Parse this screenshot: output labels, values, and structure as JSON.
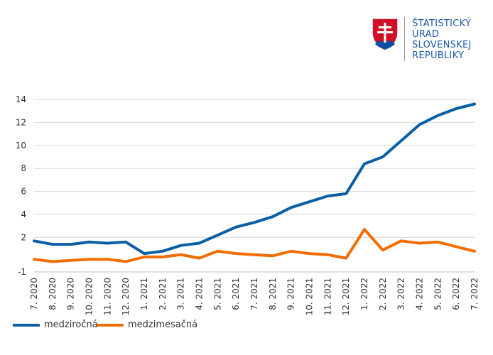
{
  "logo": {
    "lines": [
      "ŠTATISTICKÝ",
      "ÚRAD",
      "SLOVENSKEJ",
      "REPUBLIKY"
    ]
  },
  "chart_data": {
    "type": "line",
    "categories": [
      "7. 2020",
      "8. 2020",
      "9. 2020",
      "10. 2020",
      "11. 2020",
      "12. 2020",
      "1. 2021",
      "2. 2021",
      "3. 2021",
      "4. 2021",
      "5. 2021",
      "6. 2021",
      "7. 2021",
      "8. 2021",
      "9. 2021",
      "10. 2021",
      "11. 2021",
      "12. 2021",
      "1. 2022",
      "2. 2022",
      "3. 2022",
      "4. 2022",
      "5. 2022",
      "6. 2022",
      "7. 2022"
    ],
    "series": [
      {
        "name": "medziročná",
        "color": "#0b5fa5",
        "values": [
          1.7,
          1.4,
          1.4,
          1.6,
          1.5,
          1.6,
          0.6,
          0.8,
          1.3,
          1.5,
          2.2,
          2.9,
          3.3,
          3.8,
          4.6,
          5.1,
          5.6,
          5.8,
          8.4,
          9.0,
          10.4,
          11.8,
          12.6,
          13.2,
          13.6
        ]
      },
      {
        "name": "medzimesačná",
        "color": "#f26d00",
        "values": [
          0.1,
          -0.1,
          0.0,
          0.1,
          0.1,
          -0.1,
          0.3,
          0.3,
          0.5,
          0.2,
          0.8,
          0.6,
          0.5,
          0.4,
          0.8,
          0.6,
          0.5,
          0.2,
          2.7,
          0.9,
          1.7,
          1.5,
          1.6,
          1.2,
          0.8
        ]
      }
    ],
    "yticks": [
      "-1",
      "2",
      "4",
      "6",
      "8",
      "10",
      "12",
      "14"
    ],
    "ylim": [
      -1,
      14
    ],
    "grid": "horizontal",
    "legend_position": "bottom-left"
  }
}
